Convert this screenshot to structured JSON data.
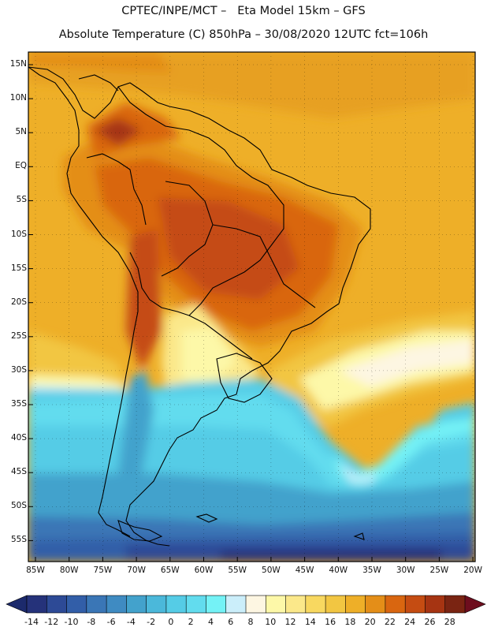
{
  "header": {
    "line1": "CPTEC/INPE/MCT –   Eta Model 15km – GFS",
    "line2": "Absolute Temperature (C) 850hPa – 30/08/2020 12UTC fct=106h"
  },
  "lat_labels": [
    "15N",
    "10N",
    "5N",
    "EQ",
    "5S",
    "10S",
    "15S",
    "20S",
    "25S",
    "30S",
    "35S",
    "40S",
    "45S",
    "50S",
    "55S"
  ],
  "lon_labels": [
    "85W",
    "80W",
    "75W",
    "70W",
    "65W",
    "60W",
    "55W",
    "50W",
    "45W",
    "40W",
    "35W",
    "30W",
    "25W",
    "20W"
  ],
  "colorbar": {
    "labels": [
      "-14",
      "-12",
      "-10",
      "-8",
      "-6",
      "-4",
      "-2",
      "0",
      "2",
      "4",
      "6",
      "8",
      "10",
      "12",
      "14",
      "16",
      "18",
      "20",
      "22",
      "24",
      "26",
      "28"
    ],
    "colors": [
      "#25327a",
      "#2d4a96",
      "#325ea8",
      "#3a76b6",
      "#3f8bc2",
      "#43a2cc",
      "#4bb8da",
      "#55cce6",
      "#62dcee",
      "#74f2f6",
      "#cbeefa",
      "#fdf6e2",
      "#fdf8a8",
      "#fbe88a",
      "#f8d860",
      "#f2c642",
      "#eeaf28",
      "#e48e18",
      "#d96610",
      "#c54c12",
      "#a63412",
      "#7a2412"
    ],
    "min_arrow_color": "#1c2a6c",
    "max_arrow_color": "#6e0e1e"
  },
  "legend_icons": [
    "colorbar-min-arrow-icon",
    "colorbar-max-arrow-icon"
  ]
}
